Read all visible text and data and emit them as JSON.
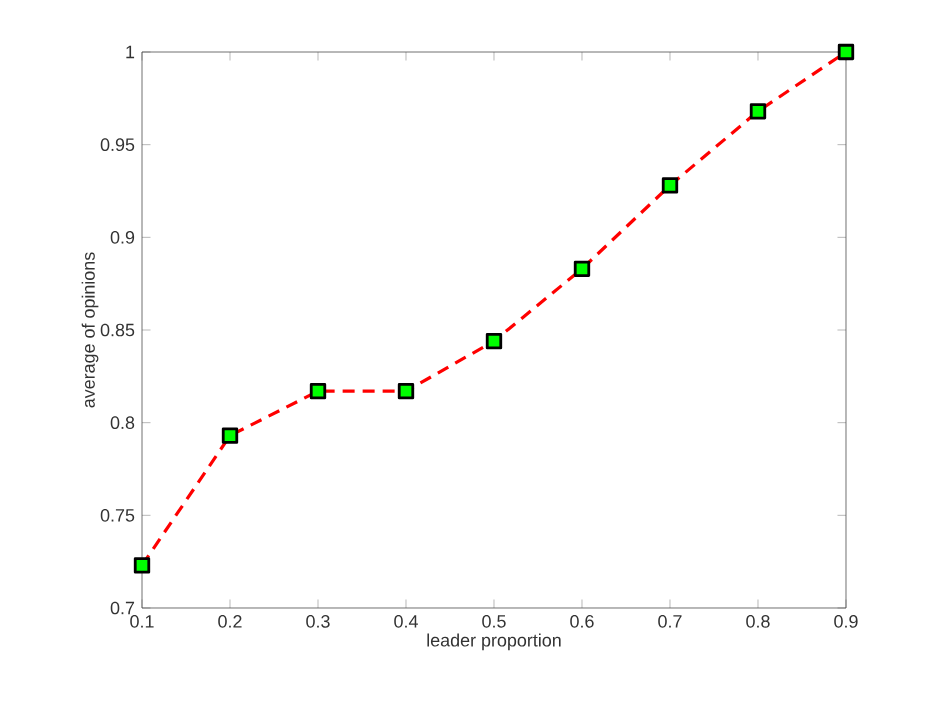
{
  "chart_data": {
    "type": "line",
    "xlabel": "leader  proportion",
    "ylabel": "average of opinions",
    "x": [
      0.1,
      0.2,
      0.3,
      0.4,
      0.5,
      0.6,
      0.7,
      0.8,
      0.9
    ],
    "series": [
      {
        "color": "#ff0000",
        "values": [
          0.723,
          0.793,
          0.817,
          0.817,
          0.844,
          0.883,
          0.928,
          0.968,
          1.0
        ]
      }
    ],
    "xlim": [
      0.1,
      0.9
    ],
    "xticks": [
      0.1,
      0.2,
      0.3,
      0.4,
      0.5,
      0.6,
      0.7,
      0.8,
      0.9
    ],
    "ylim": [
      0.7,
      1
    ],
    "yticks": [
      0.7,
      0.75,
      0.8,
      0.85,
      0.9,
      0.95,
      1
    ],
    "grid": false,
    "marker": "square",
    "line_style": "dashed"
  }
}
